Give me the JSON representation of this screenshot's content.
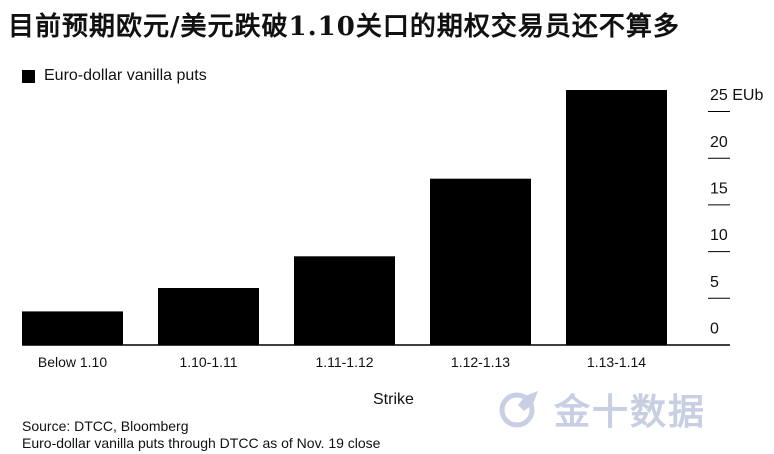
{
  "title": "目前预期欧元/美元跌破1.10关口的期权交易员还不算多",
  "chart_data": {
    "type": "bar",
    "categories": [
      "Below 1.10",
      "1.10-1.11",
      "1.11-1.12",
      "1.12-1.13",
      "1.13-1.14"
    ],
    "series": [
      {
        "name": "Euro-dollar vanilla puts",
        "values": [
          3.6,
          6.1,
          9.5,
          17.8,
          27.3
        ]
      }
    ],
    "xlabel": "Strike",
    "ylabel": "",
    "y_unit": "EUb",
    "ylim": [
      0,
      27.3
    ],
    "y_ticks": [
      0,
      5,
      10,
      15,
      20,
      25
    ],
    "y_tick_labels": [
      "0",
      "5",
      "10",
      "15",
      "20",
      "25 EUb"
    ],
    "y_axis_position": "right",
    "grid": false,
    "legend_position": "top-left",
    "bar_color": "#000000"
  },
  "source_lines": [
    "Source: DTCC, Bloomberg",
    "Euro-dollar vanilla puts through DTCC as of Nov. 19 close"
  ],
  "watermark": {
    "text": "金十数据",
    "icon": "rocket-logo-icon",
    "color": "#c8cfe3"
  }
}
